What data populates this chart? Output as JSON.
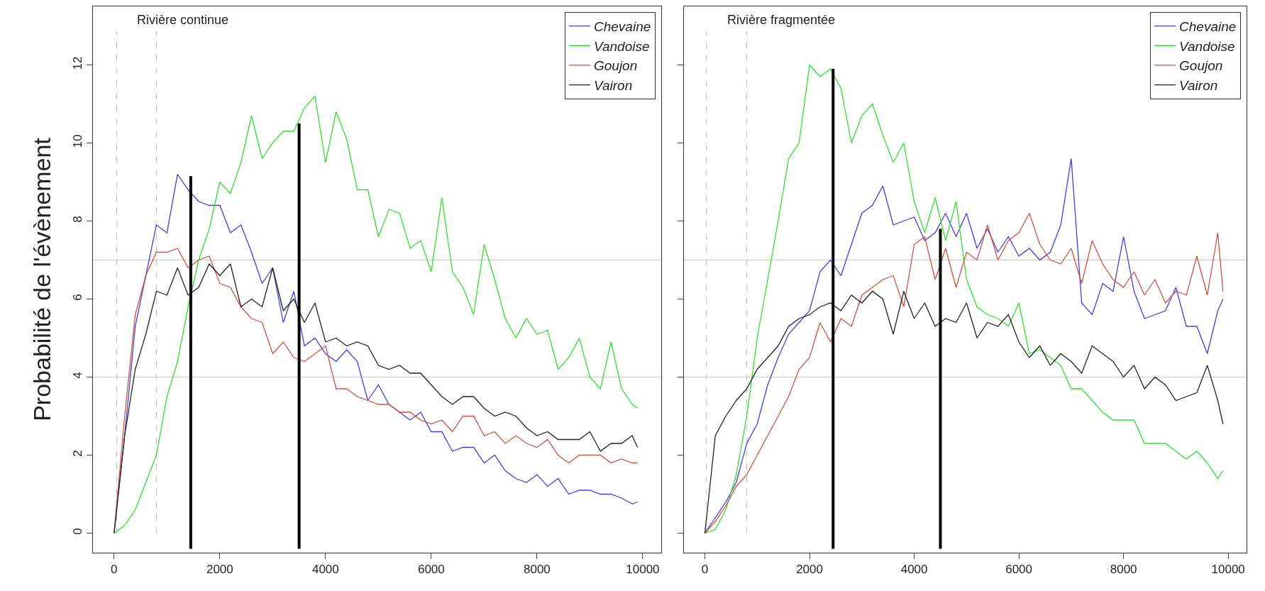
{
  "chart_data": [
    {
      "type": "line",
      "title": "Rivière continue",
      "ylabel": "Probabilité de l'évènement",
      "legend": "top right",
      "x": [
        0,
        200,
        400,
        600,
        800,
        1000,
        1200,
        1400,
        1600,
        1800,
        2000,
        2200,
        2400,
        2600,
        2800,
        3000,
        3200,
        3400,
        3600,
        3800,
        4000,
        4200,
        4400,
        4600,
        4800,
        5000,
        5200,
        5400,
        5600,
        5800,
        6000,
        6200,
        6400,
        6600,
        6800,
        7000,
        7200,
        7400,
        7600,
        7800,
        8000,
        8200,
        8400,
        8600,
        8800,
        9000,
        9200,
        9400,
        9600,
        9800,
        9900
      ],
      "xlim": [
        -400,
        10350
      ],
      "xticks": [
        0,
        2000,
        4000,
        6000,
        8000,
        10000
      ],
      "ylim": [
        -0.5,
        13.5
      ],
      "yticks": [
        0,
        2,
        4,
        6,
        8,
        10,
        12
      ],
      "series": [
        {
          "name": "Chevaine",
          "color": "#3f3fe0",
          "values": [
            0,
            2.5,
            5.3,
            6.6,
            7.9,
            7.7,
            9.2,
            8.8,
            8.5,
            8.4,
            8.4,
            7.7,
            7.9,
            7.2,
            6.4,
            6.8,
            5.4,
            6.2,
            4.8,
            5.0,
            4.6,
            4.4,
            4.7,
            4.4,
            3.4,
            3.8,
            3.3,
            3.1,
            2.9,
            3.1,
            2.6,
            2.6,
            2.1,
            2.2,
            2.2,
            1.8,
            2.0,
            1.6,
            1.4,
            1.3,
            1.5,
            1.2,
            1.4,
            1.0,
            1.1,
            1.1,
            1.0,
            1.0,
            0.9,
            0.75,
            0.8
          ]
        },
        {
          "name": "Vandoise",
          "color": "#33dd33",
          "values": [
            0,
            0.2,
            0.6,
            1.3,
            2.0,
            3.5,
            4.4,
            5.8,
            7.0,
            7.8,
            9.0,
            8.7,
            9.5,
            10.7,
            9.6,
            10.0,
            10.3,
            10.3,
            10.9,
            11.2,
            9.5,
            10.8,
            10.1,
            8.8,
            8.8,
            7.6,
            8.3,
            8.2,
            7.3,
            7.5,
            6.7,
            8.6,
            6.7,
            6.3,
            5.6,
            7.4,
            6.5,
            5.5,
            5.0,
            5.5,
            5.1,
            5.2,
            4.2,
            4.5,
            5.0,
            4.0,
            3.7,
            4.9,
            3.7,
            3.3,
            3.2
          ]
        },
        {
          "name": "Goujon",
          "color": "#d05040",
          "values": [
            0,
            3.0,
            5.6,
            6.6,
            7.2,
            7.2,
            7.3,
            6.8,
            7.0,
            7.1,
            6.4,
            6.3,
            5.8,
            5.5,
            5.4,
            4.6,
            4.9,
            4.5,
            4.4,
            4.6,
            4.8,
            3.7,
            3.7,
            3.5,
            3.4,
            3.3,
            3.3,
            3.1,
            3.1,
            2.9,
            2.8,
            2.9,
            2.6,
            3.0,
            3.0,
            2.5,
            2.6,
            2.3,
            2.5,
            2.3,
            2.2,
            2.4,
            2.0,
            1.8,
            2.0,
            2.0,
            2.0,
            1.8,
            1.9,
            1.8,
            1.8
          ]
        },
        {
          "name": "Vairon",
          "color": "#222222",
          "values": [
            0,
            2.5,
            4.2,
            5.1,
            6.2,
            6.1,
            6.8,
            6.1,
            6.3,
            6.9,
            6.6,
            6.9,
            5.8,
            6.0,
            5.8,
            6.8,
            5.7,
            6.0,
            5.4,
            5.9,
            4.9,
            5.0,
            4.8,
            4.9,
            4.8,
            4.3,
            4.2,
            4.3,
            4.1,
            4.1,
            3.8,
            3.5,
            3.3,
            3.5,
            3.5,
            3.2,
            3.0,
            3.1,
            3.0,
            2.7,
            2.5,
            2.6,
            2.4,
            2.4,
            2.4,
            2.6,
            2.1,
            2.3,
            2.3,
            2.5,
            2.2
          ]
        },
        {
          "color": "#000000",
          "x": [
            1450,
            1450
          ],
          "values": [
            -0.4,
            9.15
          ]
        },
        {
          "color": "#000000",
          "x": [
            3500,
            3500
          ],
          "values": [
            -0.4,
            10.5
          ]
        }
      ],
      "ref_lines": [
        {
          "axis": "x",
          "value": 50,
          "color": "#bbbbbb",
          "line_style": "dashed"
        },
        {
          "axis": "x",
          "value": 800,
          "color": "#bbbbbb",
          "line_style": "dashed"
        },
        {
          "axis": "y",
          "value": 4,
          "color": "#cccccc",
          "line_style": "solid"
        },
        {
          "axis": "y",
          "value": 7,
          "color": "#cccccc",
          "line_style": "solid"
        }
      ]
    },
    {
      "type": "line",
      "title": "Rivière fragmentée",
      "legend": "top right",
      "tick_labels": "x",
      "x": [
        0,
        200,
        400,
        600,
        800,
        1000,
        1200,
        1400,
        1600,
        1800,
        2000,
        2200,
        2400,
        2600,
        2800,
        3000,
        3200,
        3400,
        3600,
        3800,
        4000,
        4200,
        4400,
        4600,
        4800,
        5000,
        5200,
        5400,
        5600,
        5800,
        6000,
        6200,
        6400,
        6600,
        6800,
        7000,
        7200,
        7400,
        7600,
        7800,
        8000,
        8200,
        8400,
        8600,
        8800,
        9000,
        9200,
        9400,
        9600,
        9800,
        9900
      ],
      "xlim": [
        -400,
        10350
      ],
      "xticks": [
        0,
        2000,
        4000,
        6000,
        8000,
        10000
      ],
      "ylim": [
        -0.5,
        13.5
      ],
      "yticks": [
        0,
        2,
        4,
        6,
        8,
        10,
        12
      ],
      "series": [
        {
          "name": "Chevaine",
          "color": "#3f3fe0",
          "values": [
            0,
            0.4,
            0.8,
            1.3,
            2.3,
            2.8,
            3.8,
            4.5,
            5.1,
            5.4,
            5.7,
            6.7,
            7.0,
            6.6,
            7.4,
            8.2,
            8.4,
            8.9,
            7.9,
            8.0,
            8.1,
            7.5,
            7.7,
            8.2,
            7.6,
            8.2,
            7.3,
            7.8,
            7.2,
            7.6,
            7.1,
            7.3,
            7.0,
            7.2,
            7.9,
            9.6,
            5.9,
            5.6,
            6.4,
            6.2,
            7.6,
            6.2,
            5.5,
            5.6,
            5.7,
            6.3,
            5.3,
            5.3,
            4.6,
            5.7,
            6.0
          ]
        },
        {
          "name": "Vandoise",
          "color": "#33dd33",
          "values": [
            0,
            0.1,
            0.6,
            1.5,
            3.0,
            5.0,
            6.5,
            8.0,
            9.6,
            10.0,
            12.0,
            11.7,
            11.9,
            11.4,
            10.0,
            10.7,
            11.0,
            10.2,
            9.5,
            10.0,
            8.5,
            7.7,
            8.6,
            7.5,
            8.5,
            6.5,
            5.8,
            5.6,
            5.5,
            5.3,
            5.9,
            4.6,
            4.7,
            4.5,
            4.3,
            3.7,
            3.7,
            3.4,
            3.1,
            2.9,
            2.9,
            2.9,
            2.3,
            2.3,
            2.3,
            2.1,
            1.9,
            2.1,
            1.8,
            1.4,
            1.6
          ]
        },
        {
          "name": "Goujon",
          "color": "#d05040",
          "values": [
            0,
            0.3,
            0.7,
            1.2,
            1.5,
            2.0,
            2.5,
            3.0,
            3.5,
            4.2,
            4.5,
            5.4,
            4.9,
            5.5,
            5.3,
            6.1,
            6.3,
            6.5,
            6.6,
            5.8,
            7.4,
            7.6,
            6.5,
            7.3,
            6.3,
            7.2,
            7.0,
            7.9,
            7.0,
            7.5,
            7.7,
            8.2,
            7.4,
            7.0,
            6.9,
            7.3,
            6.4,
            7.5,
            6.9,
            6.5,
            6.3,
            6.7,
            6.1,
            6.5,
            5.9,
            6.2,
            6.1,
            7.1,
            6.1,
            7.7,
            6.2
          ]
        },
        {
          "name": "Vairon",
          "color": "#222222",
          "values": [
            0,
            2.5,
            3.0,
            3.4,
            3.7,
            4.2,
            4.5,
            4.8,
            5.3,
            5.5,
            5.6,
            5.8,
            5.9,
            5.7,
            6.1,
            5.9,
            6.2,
            6.0,
            5.1,
            6.2,
            5.5,
            5.9,
            5.3,
            5.5,
            5.4,
            5.9,
            5.0,
            5.4,
            5.3,
            5.6,
            4.9,
            4.5,
            4.8,
            4.3,
            4.6,
            4.4,
            4.1,
            4.8,
            4.6,
            4.4,
            4.0,
            4.3,
            3.7,
            4.0,
            3.8,
            3.4,
            3.5,
            3.6,
            4.3,
            3.4,
            2.8
          ]
        },
        {
          "color": "#000000",
          "x": [
            2450,
            2450
          ],
          "values": [
            -0.4,
            11.9
          ]
        },
        {
          "color": "#000000",
          "x": [
            4500,
            4500
          ],
          "values": [
            -0.4,
            7.8
          ]
        }
      ],
      "ref_lines": [
        {
          "axis": "x",
          "value": 30,
          "color": "#bbbbbb",
          "line_style": "dashed"
        },
        {
          "axis": "x",
          "value": 800,
          "color": "#bbbbbb",
          "line_style": "dashed"
        },
        {
          "axis": "y",
          "value": 4,
          "color": "#cccccc",
          "line_style": "solid"
        },
        {
          "axis": "y",
          "value": 7,
          "color": "#cccccc",
          "line_style": "solid"
        }
      ]
    }
  ]
}
